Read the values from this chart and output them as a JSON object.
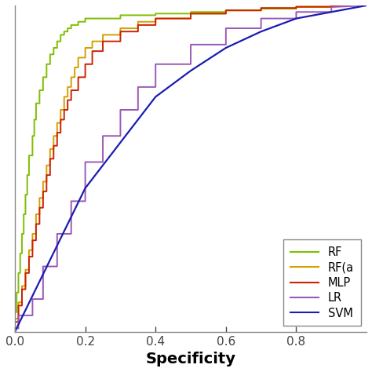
{
  "title": "",
  "xlabel": "Specificity",
  "ylabel": "",
  "xlim": [
    0.0,
    1.0
  ],
  "ylim": [
    0.0,
    1.0
  ],
  "x_ticks": [
    0.0,
    0.2,
    0.4,
    0.6,
    0.8
  ],
  "x_tick_labels": [
    "0.0",
    "0.2",
    "0.4",
    "0.6",
    "0.8"
  ],
  "background_color": "#ffffff",
  "curves": {
    "RF": {
      "color": "#7FBF00",
      "linewidth": 1.4,
      "points_x": [
        0.0,
        0.0,
        0.005,
        0.005,
        0.01,
        0.01,
        0.015,
        0.015,
        0.02,
        0.02,
        0.025,
        0.025,
        0.03,
        0.03,
        0.035,
        0.035,
        0.04,
        0.04,
        0.05,
        0.05,
        0.055,
        0.055,
        0.06,
        0.06,
        0.07,
        0.07,
        0.08,
        0.08,
        0.09,
        0.09,
        0.1,
        0.1,
        0.11,
        0.11,
        0.12,
        0.12,
        0.13,
        0.13,
        0.14,
        0.14,
        0.15,
        0.15,
        0.16,
        0.16,
        0.18,
        0.18,
        0.2,
        0.2,
        0.3,
        0.3,
        0.4,
        0.4,
        0.5,
        0.5,
        0.6,
        0.6,
        0.7,
        0.7,
        0.8,
        0.8,
        0.9,
        0.9,
        1.0
      ],
      "points_y": [
        0.0,
        0.06,
        0.06,
        0.12,
        0.12,
        0.18,
        0.18,
        0.24,
        0.24,
        0.3,
        0.3,
        0.36,
        0.36,
        0.42,
        0.42,
        0.48,
        0.48,
        0.54,
        0.54,
        0.6,
        0.6,
        0.65,
        0.65,
        0.7,
        0.7,
        0.74,
        0.74,
        0.78,
        0.78,
        0.82,
        0.82,
        0.85,
        0.85,
        0.87,
        0.87,
        0.89,
        0.89,
        0.91,
        0.91,
        0.92,
        0.92,
        0.93,
        0.93,
        0.94,
        0.94,
        0.95,
        0.95,
        0.96,
        0.96,
        0.97,
        0.97,
        0.975,
        0.975,
        0.98,
        0.98,
        0.985,
        0.985,
        0.99,
        0.99,
        0.995,
        0.995,
        0.998,
        1.0
      ]
    },
    "RF_a": {
      "color": "#D4A000",
      "linewidth": 1.4,
      "points_x": [
        0.0,
        0.0,
        0.01,
        0.01,
        0.02,
        0.02,
        0.03,
        0.03,
        0.04,
        0.04,
        0.05,
        0.05,
        0.06,
        0.06,
        0.07,
        0.07,
        0.08,
        0.08,
        0.09,
        0.09,
        0.1,
        0.1,
        0.11,
        0.11,
        0.12,
        0.12,
        0.13,
        0.13,
        0.14,
        0.14,
        0.15,
        0.15,
        0.16,
        0.16,
        0.17,
        0.17,
        0.18,
        0.18,
        0.2,
        0.2,
        0.22,
        0.22,
        0.25,
        0.25,
        0.3,
        0.3,
        0.35,
        0.35,
        0.4,
        0.4,
        0.5,
        0.5,
        0.6,
        0.6,
        0.7,
        0.7,
        0.8,
        0.8,
        0.9,
        0.9,
        1.0
      ],
      "points_y": [
        0.0,
        0.04,
        0.04,
        0.09,
        0.09,
        0.14,
        0.14,
        0.19,
        0.19,
        0.25,
        0.25,
        0.3,
        0.3,
        0.36,
        0.36,
        0.41,
        0.41,
        0.46,
        0.46,
        0.51,
        0.51,
        0.56,
        0.56,
        0.6,
        0.6,
        0.64,
        0.64,
        0.68,
        0.68,
        0.72,
        0.72,
        0.75,
        0.75,
        0.78,
        0.78,
        0.81,
        0.81,
        0.84,
        0.84,
        0.87,
        0.87,
        0.89,
        0.89,
        0.91,
        0.91,
        0.93,
        0.93,
        0.95,
        0.95,
        0.96,
        0.96,
        0.975,
        0.975,
        0.985,
        0.985,
        0.992,
        0.992,
        0.996,
        0.996,
        0.999,
        1.0
      ]
    },
    "MLP": {
      "color": "#CC2200",
      "linewidth": 1.4,
      "points_x": [
        0.0,
        0.0,
        0.01,
        0.01,
        0.02,
        0.02,
        0.03,
        0.03,
        0.04,
        0.04,
        0.05,
        0.05,
        0.06,
        0.06,
        0.07,
        0.07,
        0.08,
        0.08,
        0.09,
        0.09,
        0.1,
        0.1,
        0.11,
        0.11,
        0.12,
        0.12,
        0.13,
        0.13,
        0.14,
        0.14,
        0.15,
        0.15,
        0.16,
        0.16,
        0.18,
        0.18,
        0.2,
        0.2,
        0.22,
        0.22,
        0.25,
        0.25,
        0.3,
        0.3,
        0.35,
        0.35,
        0.4,
        0.4,
        0.5,
        0.5,
        0.6,
        0.6,
        0.7,
        0.7,
        0.8,
        0.8,
        0.9,
        0.9,
        1.0
      ],
      "points_y": [
        0.0,
        0.03,
        0.03,
        0.08,
        0.08,
        0.13,
        0.13,
        0.18,
        0.18,
        0.23,
        0.23,
        0.28,
        0.28,
        0.33,
        0.33,
        0.38,
        0.38,
        0.43,
        0.43,
        0.48,
        0.48,
        0.53,
        0.53,
        0.57,
        0.57,
        0.61,
        0.61,
        0.65,
        0.65,
        0.68,
        0.68,
        0.71,
        0.71,
        0.74,
        0.74,
        0.78,
        0.78,
        0.82,
        0.82,
        0.86,
        0.86,
        0.89,
        0.89,
        0.92,
        0.92,
        0.94,
        0.94,
        0.96,
        0.96,
        0.975,
        0.975,
        0.985,
        0.985,
        0.992,
        0.992,
        0.996,
        0.996,
        0.999,
        1.0
      ]
    },
    "LR": {
      "color": "#9B59B6",
      "linewidth": 1.4,
      "points_x": [
        0.0,
        0.0,
        0.01,
        0.01,
        0.05,
        0.05,
        0.08,
        0.08,
        0.12,
        0.12,
        0.16,
        0.16,
        0.2,
        0.2,
        0.25,
        0.25,
        0.3,
        0.3,
        0.35,
        0.35,
        0.4,
        0.4,
        0.5,
        0.5,
        0.6,
        0.6,
        0.7,
        0.7,
        0.8,
        0.8,
        0.9,
        0.9,
        1.0
      ],
      "points_y": [
        0.0,
        0.01,
        0.01,
        0.05,
        0.05,
        0.1,
        0.1,
        0.2,
        0.2,
        0.3,
        0.3,
        0.4,
        0.4,
        0.52,
        0.52,
        0.6,
        0.6,
        0.68,
        0.68,
        0.75,
        0.75,
        0.82,
        0.82,
        0.88,
        0.88,
        0.93,
        0.93,
        0.96,
        0.96,
        0.98,
        0.98,
        0.995,
        1.0
      ]
    },
    "SVM": {
      "color": "#1C1CB0",
      "linewidth": 1.6,
      "points_x": [
        0.0,
        0.05,
        0.1,
        0.15,
        0.2,
        0.25,
        0.3,
        0.35,
        0.4,
        0.5,
        0.6,
        0.7,
        0.8,
        0.9,
        1.0
      ],
      "points_y": [
        0.0,
        0.11,
        0.22,
        0.33,
        0.44,
        0.51,
        0.58,
        0.65,
        0.72,
        0.8,
        0.87,
        0.92,
        0.96,
        0.98,
        1.0
      ]
    }
  },
  "legend_entries": [
    "RF",
    "RF(a",
    "MLP",
    "LR",
    "SVM"
  ],
  "legend_colors": [
    "#7FBF00",
    "#D4A000",
    "#CC2200",
    "#9B59B6",
    "#1C1CB0"
  ],
  "figsize": [
    4.74,
    4.74
  ],
  "dpi": 100,
  "spine_color": "#888888",
  "tick_color": "#444444",
  "tick_label_fontsize": 11,
  "xlabel_fontsize": 14,
  "legend_fontsize": 10.5
}
